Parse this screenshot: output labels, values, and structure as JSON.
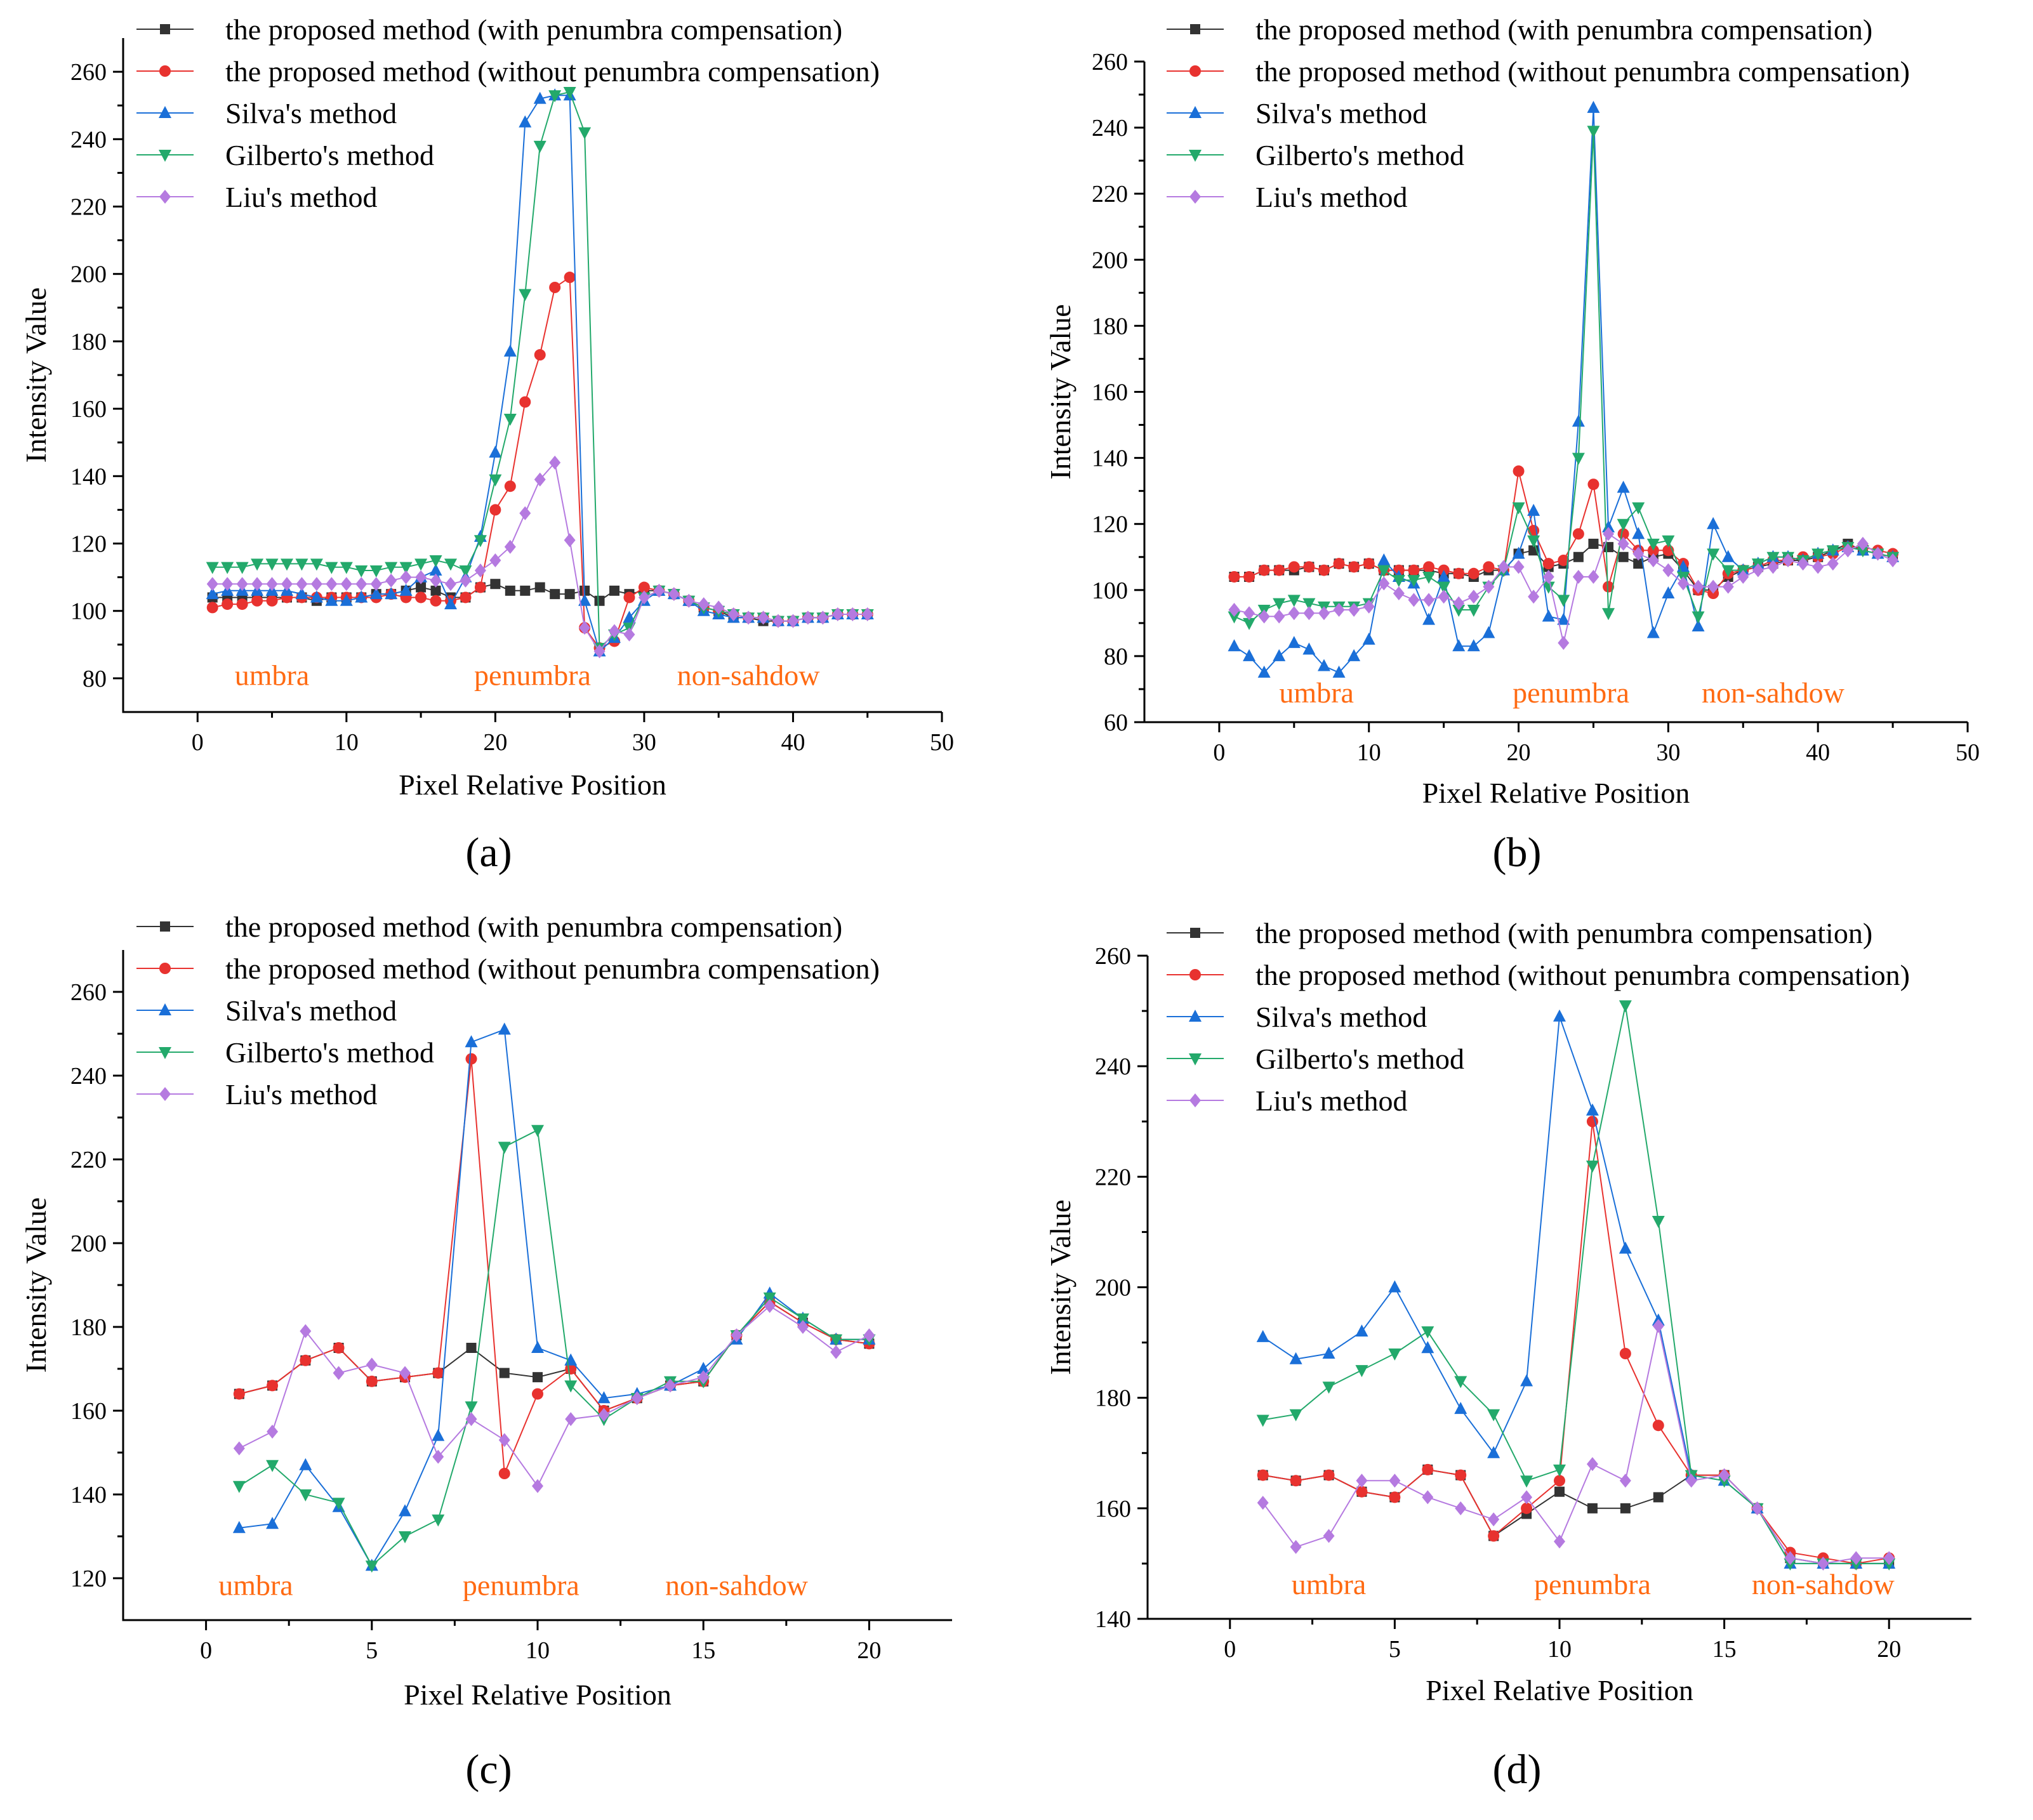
{
  "legend_labels": [
    "the proposed method (with penumbra compensation)",
    "the proposed method (without penumbra compensation)",
    "Silva's method",
    "Gilberto's method",
    "Liu's method"
  ],
  "series_colors": [
    "#333333",
    "#e8322f",
    "#1a6fd8",
    "#23a96b",
    "#b57ae0"
  ],
  "region_color": "#ff6a12",
  "chart_data": [
    {
      "type": "line",
      "panel_label": "(a)",
      "xlabel": "Pixel Relative Position",
      "ylabel": "Intensity Value",
      "xlim": [
        -5,
        50
      ],
      "ylim": [
        70,
        270
      ],
      "xticks": [
        0,
        10,
        20,
        30,
        40,
        50
      ],
      "yticks": [
        80,
        100,
        120,
        140,
        160,
        180,
        200,
        220,
        240,
        260
      ],
      "regions": [
        {
          "label": "umbra",
          "x": 5,
          "y": 78
        },
        {
          "label": "penumbra",
          "x": 22.5,
          "y": 78
        },
        {
          "label": "non-sahdow",
          "x": 37,
          "y": 78
        }
      ],
      "x": [
        1,
        2,
        3,
        4,
        5,
        6,
        7,
        8,
        9,
        10,
        11,
        12,
        13,
        14,
        15,
        16,
        17,
        18,
        19,
        20,
        21,
        22,
        23,
        24,
        25,
        26,
        27,
        28,
        29,
        30,
        31,
        32,
        33,
        34,
        35,
        36,
        37,
        38,
        39,
        40,
        41,
        42,
        43,
        44,
        45
      ],
      "series": [
        {
          "name": "the proposed method (with penumbra compensation)",
          "values": [
            104,
            104,
            104,
            104,
            104,
            104,
            104,
            103,
            104,
            104,
            104,
            105,
            105,
            106,
            107,
            106,
            104,
            104,
            107,
            108,
            106,
            106,
            107,
            105,
            105,
            106,
            103,
            106,
            105,
            106,
            106,
            105,
            103,
            101,
            100,
            98,
            98,
            97,
            97,
            97,
            98,
            98,
            99,
            99,
            99
          ]
        },
        {
          "name": "the proposed method (without penumbra compensation)",
          "values": [
            101,
            102,
            102,
            103,
            103,
            104,
            104,
            104,
            104,
            104,
            104,
            104,
            105,
            104,
            104,
            103,
            103,
            104,
            107,
            130,
            137,
            162,
            176,
            196,
            199,
            95,
            89,
            91,
            104,
            107,
            106,
            105,
            103,
            101,
            100,
            99,
            98,
            98,
            97,
            97,
            98,
            98,
            99,
            99,
            99
          ]
        },
        {
          "name": "Silva's method",
          "values": [
            105,
            106,
            106,
            106,
            106,
            106,
            105,
            104,
            103,
            103,
            104,
            105,
            105,
            106,
            110,
            112,
            102,
            110,
            122,
            147,
            177,
            245,
            252,
            253,
            253,
            103,
            88,
            92,
            98,
            103,
            106,
            105,
            103,
            100,
            99,
            98,
            98,
            98,
            97,
            97,
            98,
            98,
            99,
            99,
            99
          ]
        },
        {
          "name": "Gilberto's method",
          "values": [
            113,
            113,
            113,
            114,
            114,
            114,
            114,
            114,
            113,
            113,
            112,
            112,
            113,
            113,
            114,
            115,
            114,
            112,
            121,
            139,
            157,
            194,
            238,
            253,
            254,
            242,
            89,
            93,
            95,
            104,
            106,
            105,
            103,
            101,
            100,
            99,
            98,
            98,
            97,
            97,
            98,
            98,
            99,
            99,
            99
          ]
        },
        {
          "name": "Liu's method",
          "values": [
            108,
            108,
            108,
            108,
            108,
            108,
            108,
            108,
            108,
            108,
            108,
            108,
            109,
            110,
            110,
            109,
            108,
            109,
            112,
            115,
            119,
            129,
            139,
            144,
            121,
            95,
            88,
            94,
            93,
            104,
            106,
            105,
            103,
            102,
            101,
            99,
            98,
            98,
            97,
            97,
            98,
            98,
            99,
            99,
            99
          ]
        }
      ]
    },
    {
      "type": "line",
      "panel_label": "(b)",
      "xlabel": "Pixel Relative Position",
      "ylabel": "Intensity Value",
      "xlim": [
        -5,
        50
      ],
      "ylim": [
        60,
        260
      ],
      "xticks": [
        0,
        10,
        20,
        30,
        40,
        50
      ],
      "yticks": [
        60,
        80,
        100,
        120,
        140,
        160,
        180,
        200,
        220,
        240,
        260
      ],
      "regions": [
        {
          "label": "umbra",
          "x": 6.5,
          "y": 66
        },
        {
          "label": "penumbra",
          "x": 23.5,
          "y": 66
        },
        {
          "label": "non-sahdow",
          "x": 37,
          "y": 66
        }
      ],
      "x": [
        1,
        2,
        3,
        4,
        5,
        6,
        7,
        8,
        9,
        10,
        11,
        12,
        13,
        14,
        15,
        16,
        17,
        18,
        19,
        20,
        21,
        22,
        23,
        24,
        25,
        26,
        27,
        28,
        29,
        30,
        31,
        32,
        33,
        34,
        35,
        36,
        37,
        38,
        39,
        40,
        41,
        42,
        43,
        44,
        45
      ],
      "series": [
        {
          "name": "the proposed method (with penumbra compensation)",
          "values": [
            104,
            104,
            106,
            106,
            106,
            107,
            106,
            108,
            107,
            108,
            106,
            106,
            106,
            106,
            105,
            105,
            104,
            106,
            106,
            111,
            112,
            107,
            108,
            110,
            114,
            113,
            110,
            108,
            110,
            111,
            106,
            100,
            100,
            104,
            106,
            107,
            108,
            109,
            109,
            110,
            112,
            114,
            112,
            111,
            110
          ]
        },
        {
          "name": "the proposed method (without penumbra compensation)",
          "values": [
            104,
            104,
            106,
            106,
            107,
            107,
            106,
            108,
            107,
            108,
            106,
            106,
            106,
            107,
            106,
            105,
            105,
            107,
            106,
            136,
            118,
            108,
            109,
            117,
            132,
            101,
            117,
            112,
            112,
            112,
            108,
            100,
            99,
            105,
            106,
            107,
            109,
            109,
            110,
            110,
            111,
            113,
            113,
            112,
            111
          ]
        },
        {
          "name": "Silva's method",
          "values": [
            83,
            80,
            75,
            80,
            84,
            82,
            77,
            75,
            80,
            85,
            109,
            104,
            102,
            91,
            104,
            83,
            83,
            87,
            106,
            111,
            124,
            92,
            91,
            151,
            246,
            119,
            131,
            117,
            87,
            99,
            107,
            89,
            120,
            110,
            106,
            108,
            110,
            110,
            109,
            111,
            112,
            113,
            112,
            111,
            110
          ]
        },
        {
          "name": "Gilberto's method",
          "values": [
            92,
            90,
            94,
            96,
            97,
            96,
            95,
            95,
            95,
            96,
            106,
            103,
            103,
            104,
            101,
            94,
            94,
            101,
            106,
            125,
            115,
            101,
            97,
            140,
            239,
            93,
            120,
            125,
            114,
            115,
            104,
            92,
            111,
            106,
            106,
            108,
            110,
            110,
            109,
            111,
            112,
            113,
            112,
            111,
            110
          ]
        },
        {
          "name": "Liu's method",
          "values": [
            94,
            93,
            92,
            92,
            93,
            93,
            93,
            94,
            94,
            95,
            102,
            99,
            97,
            97,
            98,
            96,
            98,
            101,
            107,
            107,
            98,
            104,
            84,
            104,
            104,
            117,
            114,
            111,
            109,
            106,
            102,
            101,
            101,
            101,
            104,
            106,
            107,
            109,
            108,
            107,
            108,
            112,
            114,
            111,
            109
          ]
        }
      ]
    },
    {
      "type": "line",
      "panel_label": "(c)",
      "xlabel": "Pixel Relative Position",
      "ylabel": "Intensity Value",
      "xlim": [
        -2.5,
        22.5
      ],
      "ylim": [
        110,
        270
      ],
      "xticks": [
        0,
        5,
        10,
        15,
        20
      ],
      "yticks": [
        120,
        140,
        160,
        180,
        200,
        220,
        240,
        260
      ],
      "regions": [
        {
          "label": "umbra",
          "x": 1.5,
          "y": 116
        },
        {
          "label": "penumbra",
          "x": 9.5,
          "y": 116
        },
        {
          "label": "non-sahdow",
          "x": 16,
          "y": 116
        }
      ],
      "x": [
        1,
        2,
        3,
        4,
        5,
        6,
        7,
        8,
        9,
        10,
        11,
        12,
        13,
        14,
        15,
        16,
        17,
        18,
        19,
        20
      ],
      "series": [
        {
          "name": "the proposed method (with penumbra compensation)",
          "values": [
            164,
            166,
            172,
            175,
            167,
            168,
            169,
            175,
            169,
            168,
            170,
            160,
            163,
            166,
            167,
            178,
            186,
            181,
            177,
            176
          ]
        },
        {
          "name": "the proposed method (without penumbra compensation)",
          "values": [
            164,
            166,
            172,
            175,
            167,
            168,
            169,
            244,
            145,
            164,
            170,
            160,
            163,
            166,
            167,
            178,
            186,
            181,
            177,
            176
          ]
        },
        {
          "name": "Silva's method",
          "values": [
            132,
            133,
            147,
            137,
            123,
            136,
            154,
            248,
            251,
            175,
            172,
            163,
            164,
            166,
            170,
            177,
            188,
            182,
            177,
            177
          ]
        },
        {
          "name": "Gilberto's method",
          "values": [
            142,
            147,
            140,
            138,
            123,
            130,
            134,
            161,
            223,
            227,
            166,
            158,
            163,
            167,
            167,
            178,
            187,
            182,
            177,
            177
          ]
        },
        {
          "name": "Liu's method",
          "values": [
            151,
            155,
            179,
            169,
            171,
            169,
            149,
            158,
            153,
            142,
            158,
            159,
            163,
            166,
            168,
            178,
            185,
            180,
            174,
            178
          ]
        }
      ]
    },
    {
      "type": "line",
      "panel_label": "(d)",
      "xlabel": "Pixel Relative Position",
      "ylabel": "Intensity Value",
      "xlim": [
        -2.5,
        22.5
      ],
      "ylim": [
        140,
        260
      ],
      "xticks": [
        0,
        5,
        10,
        15,
        20
      ],
      "yticks": [
        140,
        160,
        180,
        200,
        220,
        240,
        260
      ],
      "regions": [
        {
          "label": "umbra",
          "x": 3,
          "y": 144.5
        },
        {
          "label": "penumbra",
          "x": 11,
          "y": 144.5
        },
        {
          "label": "non-sahdow",
          "x": 18,
          "y": 144.5
        }
      ],
      "x": [
        1,
        2,
        3,
        4,
        5,
        6,
        7,
        8,
        9,
        10,
        11,
        12,
        13,
        14,
        15,
        16,
        17,
        18,
        19,
        20
      ],
      "series": [
        {
          "name": "the proposed method (with penumbra compensation)",
          "values": [
            166,
            165,
            166,
            163,
            162,
            167,
            166,
            155,
            159,
            163,
            160,
            160,
            162,
            166,
            166,
            160,
            151,
            150,
            150,
            150
          ]
        },
        {
          "name": "the proposed method (without penumbra compensation)",
          "values": [
            166,
            165,
            166,
            163,
            162,
            167,
            166,
            155,
            160,
            165,
            230,
            188,
            175,
            166,
            166,
            160,
            152,
            151,
            150,
            151
          ]
        },
        {
          "name": "Silva's method",
          "values": [
            191,
            187,
            188,
            192,
            200,
            189,
            178,
            170,
            183,
            249,
            232,
            207,
            194,
            166,
            165,
            160,
            150,
            150,
            150,
            150
          ]
        },
        {
          "name": "Gilberto's method",
          "values": [
            176,
            177,
            182,
            185,
            188,
            192,
            183,
            177,
            165,
            167,
            222,
            251,
            212,
            166,
            165,
            160,
            150,
            150,
            150,
            150
          ]
        },
        {
          "name": "Liu's method",
          "values": [
            161,
            153,
            155,
            165,
            165,
            162,
            160,
            158,
            162,
            154,
            168,
            165,
            193,
            165,
            166,
            160,
            151,
            150,
            151,
            151
          ]
        }
      ]
    }
  ]
}
